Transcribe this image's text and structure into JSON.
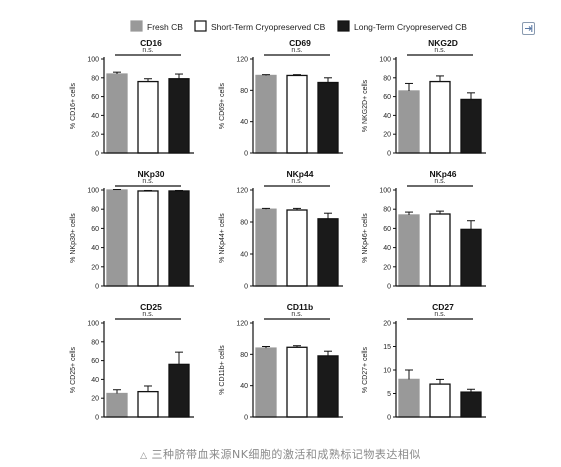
{
  "caption": {
    "icon": "triangle-icon",
    "text": "三种脐带血来源NK细胞的激活和成熟标记物表达相似"
  },
  "toolbar": {
    "export_icon": "export-icon"
  },
  "colors": {
    "fresh": "#999999",
    "short": "#ffffff",
    "long": "#1a1a1a",
    "axis": "#111111"
  },
  "chart_data": {
    "type": "bar",
    "legend": [
      "Fresh CB",
      "Short-Term Cryopreserved CB",
      "Long-Term Cryopreserved CB"
    ],
    "legend_position": "top",
    "annotation": "n.s.",
    "panels": [
      {
        "title": "CD16",
        "ylabel": "% CD16+ cells",
        "ylim": [
          0,
          100
        ],
        "ticks": [
          0,
          20,
          40,
          60,
          80,
          100
        ],
        "values": [
          84,
          76,
          79
        ],
        "errors": [
          2,
          3,
          5
        ]
      },
      {
        "title": "CD69",
        "ylabel": "% CD69+ cells",
        "ylim": [
          0,
          120
        ],
        "ticks": [
          0,
          40,
          80,
          120
        ],
        "values": [
          99,
          99,
          90
        ],
        "errors": [
          1,
          1,
          6
        ]
      },
      {
        "title": "NKG2D",
        "ylabel": "% NKG2D+ cells",
        "ylim": [
          0,
          100
        ],
        "ticks": [
          0,
          20,
          40,
          60,
          80,
          100
        ],
        "values": [
          66,
          76,
          57
        ],
        "errors": [
          8,
          6,
          7
        ]
      },
      {
        "title": "NKp30",
        "ylabel": "% NKp30+ cells",
        "ylim": [
          0,
          100
        ],
        "ticks": [
          0,
          20,
          40,
          60,
          80,
          100
        ],
        "values": [
          100,
          99,
          99
        ],
        "errors": [
          0.5,
          0.5,
          0.5
        ]
      },
      {
        "title": "NKp44",
        "ylabel": "% NKp44+ cells",
        "ylim": [
          0,
          120
        ],
        "ticks": [
          0,
          40,
          80,
          120
        ],
        "values": [
          96,
          95,
          84
        ],
        "errors": [
          1,
          2,
          7
        ]
      },
      {
        "title": "NKp46",
        "ylabel": "% NKp46+ cells",
        "ylim": [
          0,
          100
        ],
        "ticks": [
          0,
          20,
          40,
          60,
          80,
          100
        ],
        "values": [
          74,
          75,
          59
        ],
        "errors": [
          3,
          3,
          9
        ]
      },
      {
        "title": "CD25",
        "ylabel": "% CD25+ cells",
        "ylim": [
          0,
          100
        ],
        "ticks": [
          0,
          20,
          40,
          60,
          80,
          100
        ],
        "values": [
          25,
          27,
          56
        ],
        "errors": [
          4,
          6,
          13
        ]
      },
      {
        "title": "CD11b",
        "ylabel": "% CD11b+ cells",
        "ylim": [
          0,
          120
        ],
        "ticks": [
          0,
          40,
          80,
          120
        ],
        "values": [
          88,
          89,
          78
        ],
        "errors": [
          2,
          2,
          6
        ]
      },
      {
        "title": "CD27",
        "ylabel": "% CD27+ cells",
        "ylim": [
          0,
          20
        ],
        "ticks": [
          0,
          5,
          10,
          15,
          20
        ],
        "values": [
          8,
          7,
          5.3
        ],
        "errors": [
          2,
          1,
          0.6
        ]
      }
    ]
  }
}
